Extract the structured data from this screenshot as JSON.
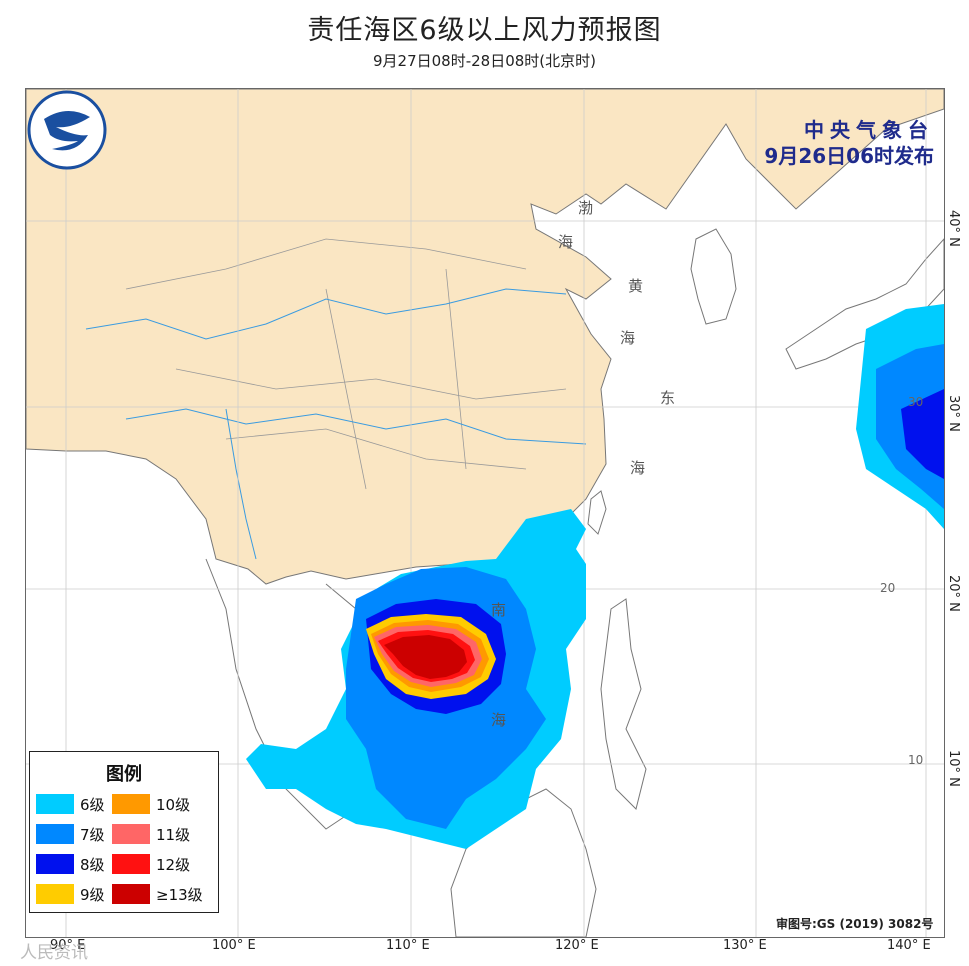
{
  "title": "责任海区6级以上风力预报图",
  "subtitle": "9月27日08时-28日08时(北京时)",
  "issuer": {
    "org": "中央气象台",
    "issued": "9月26日06时发布"
  },
  "legend": {
    "title": "图例",
    "items": [
      {
        "label": "6级",
        "color": "#00ccff"
      },
      {
        "label": "10级",
        "color": "#ff9900"
      },
      {
        "label": "7级",
        "color": "#0088ff"
      },
      {
        "label": "11级",
        "color": "#ff6666"
      },
      {
        "label": "8级",
        "color": "#0011ee"
      },
      {
        "label": "12级",
        "color": "#ff1111"
      },
      {
        "label": "9级",
        "color": "#ffcc00"
      },
      {
        "label": "≥13级",
        "color": "#cc0000"
      }
    ]
  },
  "axis": {
    "longitudes": [
      "90° E",
      "100° E",
      "110° E",
      "120° E",
      "130° E",
      "140° E"
    ],
    "latitudes": [
      "40° N",
      "30° N",
      "20° N",
      "10° N"
    ],
    "grid_lat_values": [
      "30",
      "20",
      "10"
    ]
  },
  "sea_labels": [
    "渤",
    "海",
    "黄",
    "海",
    "东",
    "海",
    "南",
    "海"
  ],
  "approval": "审图号:GS (2019) 3082号",
  "watermark": "人民资讯",
  "colors": {
    "land": "#fae6c3",
    "water": "#ffffff",
    "border": "#666666",
    "river": "#3a9be0"
  }
}
